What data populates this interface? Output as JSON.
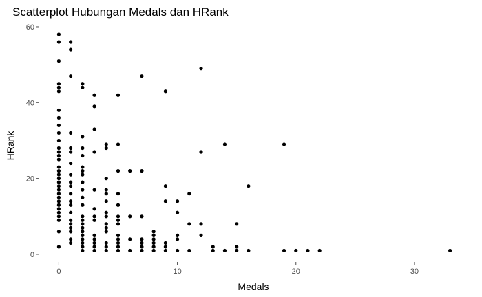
{
  "chart_data": {
    "type": "scatter",
    "title": "Scatterplot Hubungan Medals dan HRank",
    "xlabel": "Medals",
    "ylabel": "HRank",
    "xlim": [
      -1.65,
      34.65
    ],
    "ylim": [
      -2.0,
      60.9
    ],
    "xticks": [
      0,
      10,
      20,
      30
    ],
    "yticks": [
      0,
      20,
      40,
      60
    ],
    "grid": false,
    "color": "#000000",
    "points": [
      [
        0,
        58
      ],
      [
        0,
        56
      ],
      [
        0,
        51
      ],
      [
        0,
        45
      ],
      [
        0,
        44
      ],
      [
        0,
        43
      ],
      [
        0,
        38
      ],
      [
        0,
        36
      ],
      [
        0,
        34
      ],
      [
        0,
        32
      ],
      [
        0,
        30
      ],
      [
        0,
        28
      ],
      [
        0,
        27
      ],
      [
        0,
        26
      ],
      [
        0,
        25
      ],
      [
        0,
        23
      ],
      [
        0,
        22
      ],
      [
        0,
        21
      ],
      [
        0,
        20
      ],
      [
        0,
        19
      ],
      [
        0,
        18
      ],
      [
        0,
        17
      ],
      [
        0,
        16
      ],
      [
        0,
        15
      ],
      [
        0,
        14
      ],
      [
        0,
        13
      ],
      [
        0,
        12
      ],
      [
        0,
        11
      ],
      [
        0,
        10
      ],
      [
        0,
        9
      ],
      [
        0,
        6
      ],
      [
        0,
        2
      ],
      [
        1,
        56
      ],
      [
        1,
        54
      ],
      [
        1,
        47
      ],
      [
        1,
        32
      ],
      [
        1,
        28
      ],
      [
        1,
        27
      ],
      [
        1,
        24
      ],
      [
        1,
        21
      ],
      [
        1,
        19
      ],
      [
        1,
        18
      ],
      [
        1,
        16
      ],
      [
        1,
        14
      ],
      [
        1,
        13
      ],
      [
        1,
        11
      ],
      [
        1,
        9
      ],
      [
        1,
        8
      ],
      [
        1,
        7
      ],
      [
        1,
        6
      ],
      [
        1,
        4
      ],
      [
        1,
        3
      ],
      [
        2,
        45
      ],
      [
        2,
        44
      ],
      [
        2,
        31
      ],
      [
        2,
        28
      ],
      [
        2,
        26
      ],
      [
        2,
        23
      ],
      [
        2,
        22
      ],
      [
        2,
        21
      ],
      [
        2,
        19
      ],
      [
        2,
        17
      ],
      [
        2,
        15
      ],
      [
        2,
        13
      ],
      [
        2,
        10
      ],
      [
        2,
        9
      ],
      [
        2,
        8
      ],
      [
        2,
        7
      ],
      [
        2,
        6
      ],
      [
        2,
        5
      ],
      [
        2,
        4
      ],
      [
        2,
        3
      ],
      [
        2,
        2
      ],
      [
        2,
        1
      ],
      [
        3,
        42
      ],
      [
        3,
        39
      ],
      [
        3,
        33
      ],
      [
        3,
        27
      ],
      [
        3,
        17
      ],
      [
        3,
        12
      ],
      [
        3,
        10
      ],
      [
        3,
        9
      ],
      [
        3,
        5
      ],
      [
        3,
        4
      ],
      [
        3,
        3
      ],
      [
        3,
        2
      ],
      [
        3,
        1
      ],
      [
        4,
        29
      ],
      [
        4,
        28
      ],
      [
        4,
        20
      ],
      [
        4,
        17
      ],
      [
        4,
        16
      ],
      [
        4,
        14
      ],
      [
        4,
        11
      ],
      [
        4,
        10
      ],
      [
        4,
        8
      ],
      [
        4,
        7
      ],
      [
        4,
        6
      ],
      [
        4,
        3
      ],
      [
        4,
        2
      ],
      [
        4,
        1
      ],
      [
        5,
        42
      ],
      [
        5,
        29
      ],
      [
        5,
        22
      ],
      [
        5,
        16
      ],
      [
        5,
        13
      ],
      [
        5,
        10
      ],
      [
        5,
        9
      ],
      [
        5,
        8
      ],
      [
        5,
        5
      ],
      [
        5,
        4
      ],
      [
        5,
        3
      ],
      [
        5,
        2
      ],
      [
        5,
        1
      ],
      [
        6,
        22
      ],
      [
        6,
        10
      ],
      [
        6,
        4
      ],
      [
        6,
        1
      ],
      [
        7,
        47
      ],
      [
        7,
        22
      ],
      [
        7,
        10
      ],
      [
        7,
        4
      ],
      [
        7,
        3
      ],
      [
        7,
        2
      ],
      [
        7,
        1
      ],
      [
        8,
        6
      ],
      [
        8,
        5
      ],
      [
        8,
        4
      ],
      [
        8,
        3
      ],
      [
        8,
        2
      ],
      [
        8,
        1
      ],
      [
        9,
        43
      ],
      [
        9,
        18
      ],
      [
        9,
        14
      ],
      [
        9,
        3
      ],
      [
        9,
        2
      ],
      [
        9,
        1
      ],
      [
        10,
        14
      ],
      [
        10,
        11
      ],
      [
        10,
        5
      ],
      [
        10,
        4
      ],
      [
        10,
        1
      ],
      [
        11,
        16
      ],
      [
        11,
        8
      ],
      [
        11,
        1
      ],
      [
        12,
        49
      ],
      [
        12,
        27
      ],
      [
        12,
        8
      ],
      [
        12,
        5
      ],
      [
        13,
        2
      ],
      [
        13,
        1
      ],
      [
        14,
        29
      ],
      [
        14,
        1
      ],
      [
        15,
        8
      ],
      [
        15,
        2
      ],
      [
        15,
        1
      ],
      [
        16,
        18
      ],
      [
        16,
        1
      ],
      [
        19,
        29
      ],
      [
        19,
        1
      ],
      [
        20,
        1
      ],
      [
        21,
        1
      ],
      [
        22,
        1
      ],
      [
        33,
        1
      ]
    ]
  }
}
